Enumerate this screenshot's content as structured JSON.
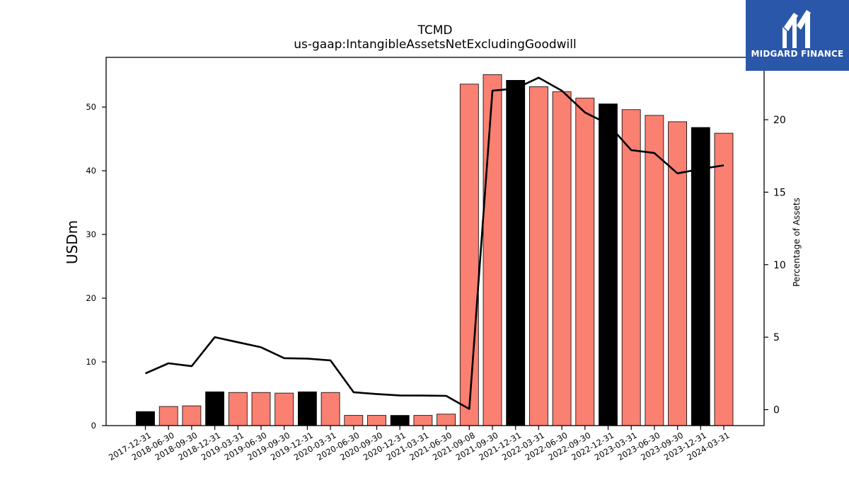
{
  "logo": {
    "text": "MIDGARD FINANCE",
    "bg": "#2a57a9",
    "icon": "midgard-m-icon"
  },
  "chart_data": {
    "type": "bar",
    "title": "TCMD",
    "subtitle": "us-gaap:IntangibleAssetsNetExcludingGoodwill",
    "ylabel": "USDm",
    "y2label": "Percentage of Assets",
    "ylim": [
      0,
      57.8
    ],
    "y2lim": [
      -1.1,
      24.3
    ],
    "yticks": [
      0,
      10,
      20,
      30,
      40,
      50
    ],
    "y2ticks": [
      0,
      5,
      10,
      15,
      20
    ],
    "grid": false,
    "colors": {
      "annual": "#000000",
      "quarter": "#fa8072",
      "line": "#000000"
    },
    "categories": [
      "2017-12-31",
      "2018-06-30",
      "2018-09-30",
      "2018-12-31",
      "2019-03-31",
      "2019-06-30",
      "2019-09-30",
      "2019-12-31",
      "2020-03-31",
      "2020-06-30",
      "2020-09-30",
      "2020-12-31",
      "2021-03-31",
      "2021-06-30",
      "2021-09-08",
      "2021-09-30",
      "2021-12-31",
      "2022-03-31",
      "2022-06-30",
      "2022-09-30",
      "2022-12-31",
      "2023-03-31",
      "2023-06-30",
      "2023-09-30",
      "2023-12-31",
      "2024-03-31"
    ],
    "series": [
      {
        "values": [
          2.2,
          3.0,
          3.1,
          5.3,
          5.2,
          5.2,
          5.1,
          5.3,
          5.2,
          1.6,
          1.6,
          1.6,
          1.6,
          1.8,
          53.6,
          55.1,
          54.2,
          53.2,
          52.4,
          51.4,
          50.5,
          49.6,
          48.7,
          47.7,
          46.8,
          45.9
        ]
      },
      {
        "axis": "right",
        "type": "line",
        "values": [
          2.5,
          3.2,
          3.0,
          5.0,
          4.65,
          4.3,
          3.55,
          3.52,
          3.4,
          1.2,
          1.08,
          0.98,
          0.97,
          0.95,
          0.05,
          22.0,
          22.15,
          22.9,
          22.0,
          20.5,
          19.7,
          17.9,
          17.7,
          16.3,
          16.6,
          16.85
        ]
      }
    ],
    "annual_flags": [
      true,
      false,
      false,
      true,
      false,
      false,
      false,
      true,
      false,
      false,
      false,
      true,
      false,
      false,
      false,
      false,
      true,
      false,
      false,
      false,
      true,
      false,
      false,
      false,
      true,
      false
    ]
  }
}
